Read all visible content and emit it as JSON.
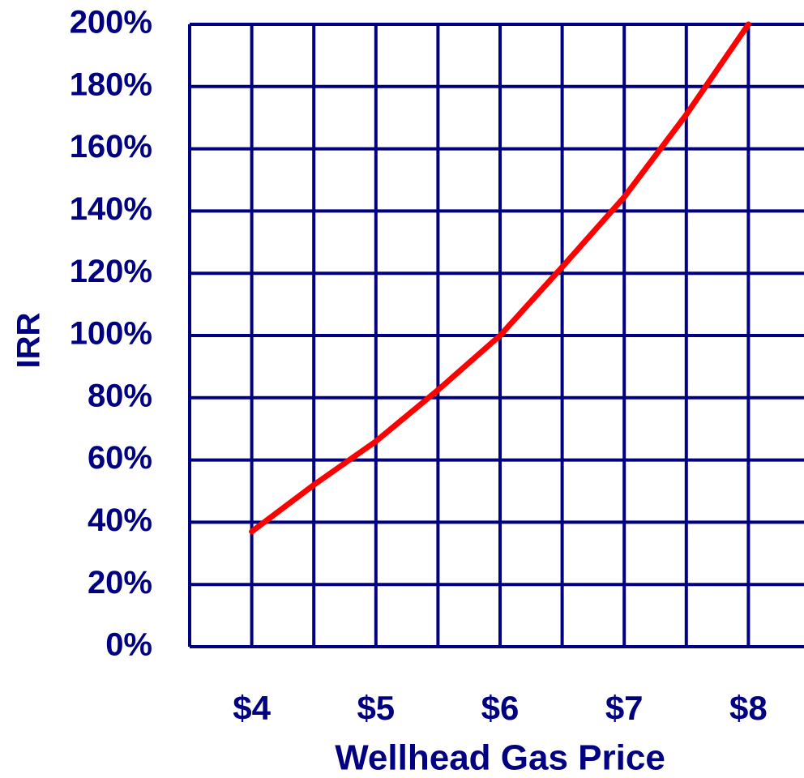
{
  "chart_data": {
    "type": "line",
    "x_label": "Wellhead Gas Price",
    "y_label": "IRR",
    "x": [
      4,
      4.5,
      5,
      5.5,
      6,
      6.5,
      7,
      7.5,
      8
    ],
    "series": [
      {
        "name": "IRR",
        "color": "#ff0000",
        "values": [
          37,
          52,
          66,
          82.5,
          100,
          122,
          144.5,
          171,
          200
        ]
      }
    ],
    "xlim": [
      3.5,
      8.5
    ],
    "xticks": [
      {
        "value": 4,
        "label": "$4"
      },
      {
        "value": 5,
        "label": "$5"
      },
      {
        "value": 6,
        "label": "$6"
      },
      {
        "value": 7,
        "label": "$7"
      },
      {
        "value": 8,
        "label": "$8"
      }
    ],
    "x_minor_ticks": [
      3.5,
      4,
      4.5,
      5,
      5.5,
      6,
      6.5,
      7,
      7.5,
      8,
      8.5
    ],
    "ylim": [
      0,
      200
    ],
    "yticks": [
      {
        "value": 0,
        "label": "0%"
      },
      {
        "value": 20,
        "label": "20%"
      },
      {
        "value": 40,
        "label": "40%"
      },
      {
        "value": 60,
        "label": "60%"
      },
      {
        "value": 80,
        "label": "80%"
      },
      {
        "value": 100,
        "label": "100%"
      },
      {
        "value": 120,
        "label": "120%"
      },
      {
        "value": 140,
        "label": "140%"
      },
      {
        "value": 160,
        "label": "160%"
      },
      {
        "value": 180,
        "label": "180%"
      },
      {
        "value": 200,
        "label": "200%"
      }
    ],
    "grid": true,
    "grid_color": "#000080"
  }
}
